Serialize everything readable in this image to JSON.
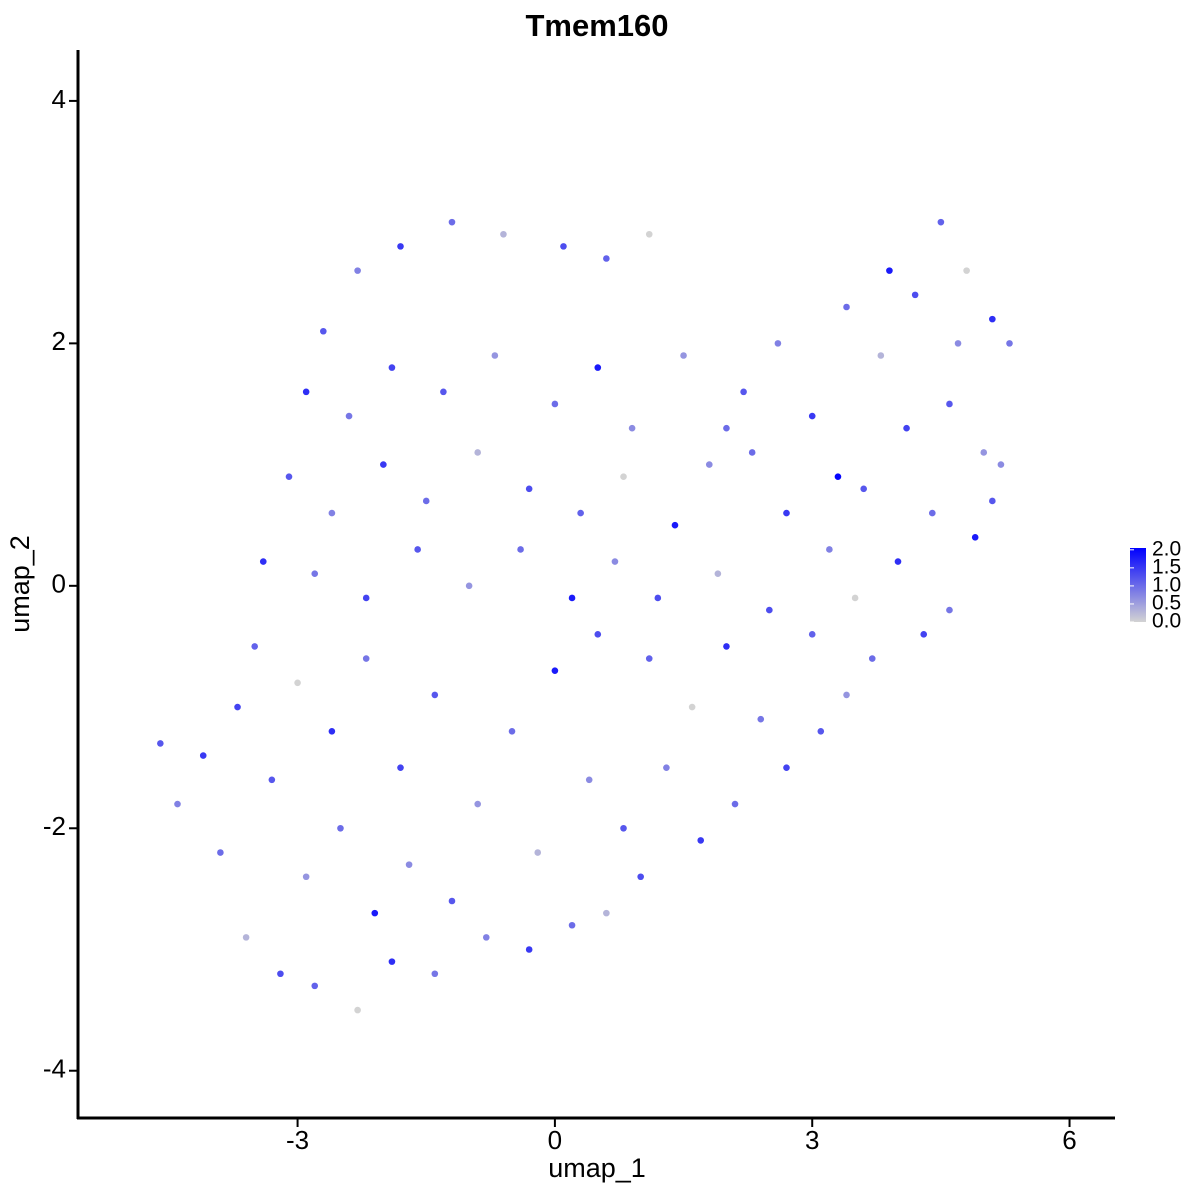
{
  "chart_data": {
    "type": "scatter",
    "title": "Tmem160",
    "x_label": "umap_1",
    "y_label": "umap_2",
    "xlim": [
      -5.56,
      6.53
    ],
    "ylim": [
      -4.39,
      4.42
    ],
    "xticks": [
      -3,
      0,
      3,
      6
    ],
    "yticks": [
      -4,
      -2,
      0,
      2,
      4
    ],
    "low_color": "#d3d3d3",
    "high_color": "#0000ff",
    "clim": [
      0,
      2.05
    ],
    "cticks": [
      {
        "value": 0,
        "label": "0.0"
      },
      {
        "value": 0.5,
        "label": "0.5"
      },
      {
        "value": 1,
        "label": "1.0"
      },
      {
        "value": 1.5,
        "label": "1.5"
      },
      {
        "value": 2,
        "label": "2.0"
      }
    ],
    "x": [
      -2.7,
      -2.3,
      -1.8,
      -1.2,
      -0.6,
      0.1,
      0.6,
      1.1,
      -2.9,
      -2.4,
      -1.9,
      -1.3,
      -0.7,
      0,
      0.5,
      0.9,
      -3.1,
      -2.6,
      -2.0,
      -1.5,
      -0.9,
      -0.3,
      0.3,
      0.8,
      -3.4,
      -2.8,
      -2.2,
      -1.6,
      -1.0,
      -0.4,
      0.2,
      0.7,
      -4.6,
      -4.4,
      -4.1,
      -3.9,
      -3.6,
      -3.2,
      -2.8,
      -2.3,
      -1.9,
      -1.4,
      -3.7,
      -3.3,
      -2.9,
      -2.5,
      -2.1,
      -1.7,
      -1.2,
      -0.8,
      -0.3,
      0.2,
      0.6,
      1.0,
      -3.5,
      -3.0,
      -2.6,
      -2.2,
      -1.8,
      -1.4,
      -0.9,
      -0.5,
      0,
      0.4,
      0.8,
      1.3,
      1.7,
      2.1,
      -0.2,
      0.5,
      1.1,
      1.6,
      2.0,
      2.4,
      2.7,
      3.1,
      3.4,
      3.7,
      1.4,
      1.8,
      2.2,
      2.6,
      3.0,
      3.4,
      3.8,
      4.2,
      4.5,
      4.8,
      5.1,
      5.3,
      4.1,
      4.6,
      5.0,
      4.4,
      4.9,
      5.2,
      3.6,
      3.2,
      2.7,
      2.3,
      1.9,
      2.5,
      3.0,
      3.5,
      4.0,
      4.6,
      4.3,
      5.1,
      1.5,
      2.0,
      3.9,
      4.7,
      1.2,
      3.3
    ],
    "y": [
      2.1,
      2.6,
      2.8,
      3.0,
      2.9,
      2.8,
      2.7,
      2.9,
      1.6,
      1.4,
      1.8,
      1.6,
      1.9,
      1.5,
      1.8,
      1.3,
      0.9,
      0.6,
      1.0,
      0.7,
      1.1,
      0.8,
      0.6,
      0.9,
      0.2,
      0.1,
      -0.1,
      0.3,
      0.0,
      0.3,
      -0.1,
      0.2,
      -1.3,
      -1.8,
      -1.4,
      -2.2,
      -2.9,
      -3.2,
      -3.3,
      -3.5,
      -3.1,
      -3.2,
      -1.0,
      -1.6,
      -2.4,
      -2.0,
      -2.7,
      -2.3,
      -2.6,
      -2.9,
      -3.0,
      -2.8,
      -2.7,
      -2.4,
      -0.5,
      -0.8,
      -1.2,
      -0.6,
      -1.5,
      -0.9,
      -1.8,
      -1.2,
      -0.7,
      -1.6,
      -2.0,
      -1.5,
      -2.1,
      -1.8,
      -2.2,
      -0.4,
      -0.6,
      -1.0,
      -0.5,
      -1.1,
      -1.5,
      -1.2,
      -0.9,
      -0.6,
      0.5,
      1.0,
      1.6,
      2.0,
      1.4,
      2.3,
      1.9,
      2.4,
      3.0,
      2.6,
      2.2,
      2.0,
      1.3,
      1.5,
      1.1,
      0.6,
      0.4,
      1.0,
      0.8,
      0.3,
      0.6,
      1.1,
      0.1,
      -0.2,
      -0.4,
      -0.1,
      0.2,
      -0.2,
      -0.4,
      0.7,
      1.9,
      1.3,
      2.6,
      2.0,
      -0.1,
      0.9
    ],
    "values": [
      1.2,
      0.8,
      1.5,
      1.0,
      0.3,
      1.3,
      1.1,
      0.0,
      1.6,
      0.9,
      1.4,
      1.2,
      0.6,
      1.0,
      1.8,
      0.7,
      1.2,
      0.8,
      1.5,
      1.0,
      0.3,
      1.3,
      1.1,
      0.0,
      1.6,
      0.9,
      1.4,
      1.2,
      0.6,
      1.0,
      1.8,
      0.7,
      1.2,
      0.8,
      1.5,
      1.0,
      0.3,
      1.3,
      1.1,
      0.0,
      1.6,
      0.9,
      1.4,
      1.2,
      0.6,
      1.0,
      1.8,
      0.7,
      1.2,
      0.8,
      1.5,
      1.0,
      0.3,
      1.3,
      1.1,
      0.0,
      1.6,
      0.9,
      1.4,
      1.2,
      0.6,
      1.0,
      1.8,
      0.7,
      1.2,
      0.8,
      1.5,
      1.0,
      0.3,
      1.3,
      1.1,
      0.0,
      1.6,
      0.9,
      1.4,
      1.2,
      0.6,
      1.0,
      1.8,
      0.7,
      1.2,
      0.8,
      1.5,
      1.0,
      0.3,
      1.3,
      1.1,
      0.0,
      1.6,
      0.9,
      1.4,
      1.2,
      0.6,
      1.0,
      1.8,
      0.7,
      1.2,
      0.8,
      1.5,
      1.0,
      0.3,
      1.3,
      1.1,
      0.0,
      1.6,
      0.9,
      1.4,
      1.2,
      0.6,
      1.0,
      1.8,
      0.7,
      1.3,
      2.0
    ]
  }
}
